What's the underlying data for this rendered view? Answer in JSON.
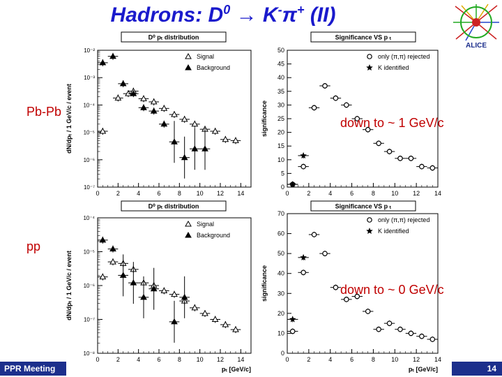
{
  "slide": {
    "title_main": "Hadrons: D",
    "title_sup0": "0",
    "title_arrow": "→",
    "title_k": "K",
    "title_sup1": "-",
    "title_pi": "π",
    "title_sup2": "+",
    "title_tail": "(II)",
    "label_pbpb": "Pb-Pb",
    "label_pp": "pp",
    "note_pbpb": "down to ~ 1 GeV/c",
    "note_pp": "down to ~ 0 GeV/c",
    "footer_left": "PPR Meeting",
    "page_number": "14",
    "logo_text": "ALICE"
  },
  "chart_data": [
    {
      "id": "pbpb-pt-dist",
      "type": "scatter",
      "title": "D⁰ pₜ distribution",
      "ylabel": "dN/dpₜ / 1 GeV/c / event",
      "xlabel": "",
      "log_y": true,
      "xlim": [
        0,
        15
      ],
      "ylim_exp": [
        -7,
        -2
      ],
      "x_ticks": [
        "0",
        "2",
        "4",
        "6",
        "8",
        "10",
        "12",
        "14"
      ],
      "y_ticks": [
        "10⁻²",
        "10⁻³",
        "10⁻⁴",
        "10⁻⁵",
        "10⁻⁶",
        "10⁻⁷"
      ],
      "legend_position": "top-right",
      "series": [
        {
          "name": "Signal",
          "marker": "open-triangle",
          "x": [
            0.5,
            2.0,
            3.0,
            3.5,
            4.5,
            5.5,
            6.5,
            7.5,
            8.5,
            9.5,
            10.5,
            11.5,
            12.5,
            13.5
          ],
          "y": [
            1.1e-05,
            0.00018,
            0.00026,
            0.00032,
            0.00017,
            0.00013,
            7.5e-05,
            4.5e-05,
            3e-05,
            2e-05,
            1.3e-05,
            1.1e-05,
            5.5e-06,
            5e-06
          ]
        },
        {
          "name": "Background",
          "marker": "filled-triangle",
          "x": [
            0.5,
            1.5,
            2.5,
            3.5,
            4.5,
            5.5,
            6.5,
            7.5,
            8.5,
            9.5,
            10.5
          ],
          "y": [
            0.0035,
            0.006,
            0.0006,
            0.00026,
            8e-05,
            6e-05,
            2e-05,
            4.5e-06,
            1.2e-06,
            2.5e-06,
            2.5e-06
          ]
        }
      ]
    },
    {
      "id": "pbpb-significance",
      "type": "scatter",
      "title": "Significance VS p ₜ",
      "ylabel": "significance",
      "xlabel": "",
      "xlim": [
        0,
        14
      ],
      "ylim": [
        0,
        50
      ],
      "x_ticks": [
        "0",
        "2",
        "4",
        "6",
        "8",
        "10",
        "12",
        "14"
      ],
      "y_ticks": [
        "0",
        "5",
        "10",
        "15",
        "20",
        "25",
        "30",
        "35",
        "40",
        "45",
        "50"
      ],
      "legend_position": "top-right",
      "series": [
        {
          "name": "only (π,π) rejected",
          "marker": "open-circle",
          "x": [
            0.5,
            1.5,
            2.5,
            3.5,
            4.5,
            5.5,
            6.5,
            7.5,
            8.5,
            9.5,
            10.5,
            11.5,
            12.5,
            13.5
          ],
          "y": [
            1,
            7.5,
            29,
            37,
            32.5,
            30,
            25,
            21,
            16,
            13,
            10.5,
            10.5,
            7.5,
            7
          ]
        },
        {
          "name": "K identified",
          "marker": "star",
          "x": [
            0.5,
            1.5
          ],
          "y": [
            1,
            11.5
          ]
        }
      ]
    },
    {
      "id": "pp-pt-dist",
      "type": "scatter",
      "title": "D⁰ pₜ distribution",
      "ylabel": "dN/dpₜ / 1 GeV/c / event",
      "xlabel": "pₜ [GeV/c]",
      "log_y": true,
      "xlim": [
        0,
        15
      ],
      "ylim_exp": [
        -8,
        -4
      ],
      "x_ticks": [
        "0",
        "2",
        "4",
        "6",
        "8",
        "10",
        "12",
        "14"
      ],
      "y_ticks": [
        "10⁻⁴",
        "10⁻⁵",
        "10⁻⁶",
        "10⁻⁷",
        "10⁻⁸"
      ],
      "legend_position": "top-right",
      "series": [
        {
          "name": "Signal",
          "marker": "open-triangle",
          "x": [
            0.5,
            1.5,
            2.5,
            3.5,
            4.5,
            5.5,
            6.5,
            7.5,
            8.5,
            9.5,
            10.5,
            11.5,
            12.5,
            13.5
          ],
          "y": [
            1.8e-06,
            5e-06,
            4.5e-06,
            3e-06,
            1.2e-06,
            1e-06,
            7e-07,
            5.5e-07,
            3.5e-07,
            2.2e-07,
            1.5e-07,
            1e-07,
            7e-08,
            5e-08
          ]
        },
        {
          "name": "Background",
          "marker": "filled-triangle",
          "x": [
            0.5,
            1.5,
            2.5,
            3.5,
            4.5,
            5.5,
            7.5,
            8.5
          ],
          "y": [
            2.2e-05,
            1.2e-05,
            2e-06,
            1.2e-06,
            4.5e-07,
            8e-07,
            8.5e-08,
            4.5e-07
          ]
        }
      ]
    },
    {
      "id": "pp-significance",
      "type": "scatter",
      "title": "Significance VS p ₜ",
      "ylabel": "significance",
      "xlabel": "pₜ [GeV/c]",
      "xlim": [
        0,
        14
      ],
      "ylim": [
        0,
        70
      ],
      "x_ticks": [
        "0",
        "2",
        "4",
        "6",
        "8",
        "10",
        "12",
        "14"
      ],
      "y_ticks": [
        "0",
        "10",
        "20",
        "30",
        "40",
        "50",
        "60",
        "70"
      ],
      "legend_position": "top-right",
      "series": [
        {
          "name": "only (π,π) rejected",
          "marker": "open-circle",
          "x": [
            0.5,
            1.5,
            2.5,
            3.5,
            4.5,
            5.5,
            6.5,
            7.5,
            8.5,
            9.5,
            10.5,
            11.5,
            12.5,
            13.5
          ],
          "y": [
            11,
            40.5,
            59.5,
            50,
            33,
            27,
            28.5,
            21,
            12,
            15,
            12,
            10,
            8.5,
            7
          ]
        },
        {
          "name": "K identified",
          "marker": "star",
          "x": [
            0.5,
            1.5
          ],
          "y": [
            17,
            48
          ]
        }
      ]
    }
  ]
}
